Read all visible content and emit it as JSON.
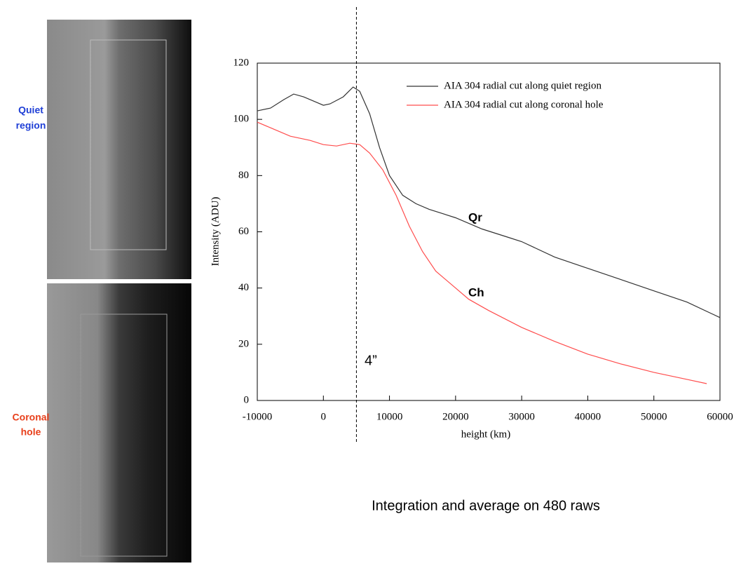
{
  "panels": [
    {
      "label": [
        "Quiet",
        "region"
      ]
    },
    {
      "label": [
        "Coronal",
        "hole"
      ]
    }
  ],
  "caption": "Integration and average on 480 raws",
  "chart_data": {
    "type": "line",
    "xlabel": "height (km)",
    "ylabel": "Intensity (ADU)",
    "xlim": [
      -10000,
      60000
    ],
    "ylim": [
      0,
      120
    ],
    "xticks": [
      -10000,
      0,
      10000,
      20000,
      30000,
      40000,
      50000,
      60000
    ],
    "yticks": [
      0,
      20,
      40,
      60,
      80,
      100,
      120
    ],
    "vline": 5000,
    "annotations": [
      "4”",
      "Qr",
      "Ch"
    ],
    "series": [
      {
        "name": "AIA 304 radial cut along quiet region",
        "color": "#333333",
        "x": [
          -10000,
          -8000,
          -6000,
          -4500,
          -3000,
          -1000,
          0,
          1000,
          3000,
          4500,
          5500,
          7000,
          8500,
          10000,
          12000,
          14000,
          16000,
          20000,
          24000,
          28000,
          30000,
          35000,
          40000,
          45000,
          50000,
          55000,
          60000
        ],
        "values": [
          103,
          104,
          107,
          109,
          108,
          106,
          105,
          105.5,
          108,
          111.5,
          110,
          102,
          90,
          80,
          73,
          70,
          68,
          65,
          61,
          58,
          56.5,
          51,
          47,
          43,
          39,
          35,
          29.5
        ]
      },
      {
        "name": "AIA 304 radial cut along coronal hole",
        "color": "#ff4d4d",
        "x": [
          -10000,
          -8000,
          -5000,
          -2000,
          0,
          2000,
          4000,
          5500,
          7000,
          9000,
          11000,
          13000,
          15000,
          17000,
          20000,
          22000,
          25000,
          30000,
          35000,
          40000,
          45000,
          50000,
          55000,
          58000
        ],
        "values": [
          99,
          97,
          94,
          92.5,
          91,
          90.5,
          91.5,
          91,
          88,
          82,
          73,
          62,
          53,
          46,
          40,
          36,
          32,
          26,
          21,
          16.5,
          13,
          10,
          7.5,
          6
        ]
      }
    ]
  }
}
